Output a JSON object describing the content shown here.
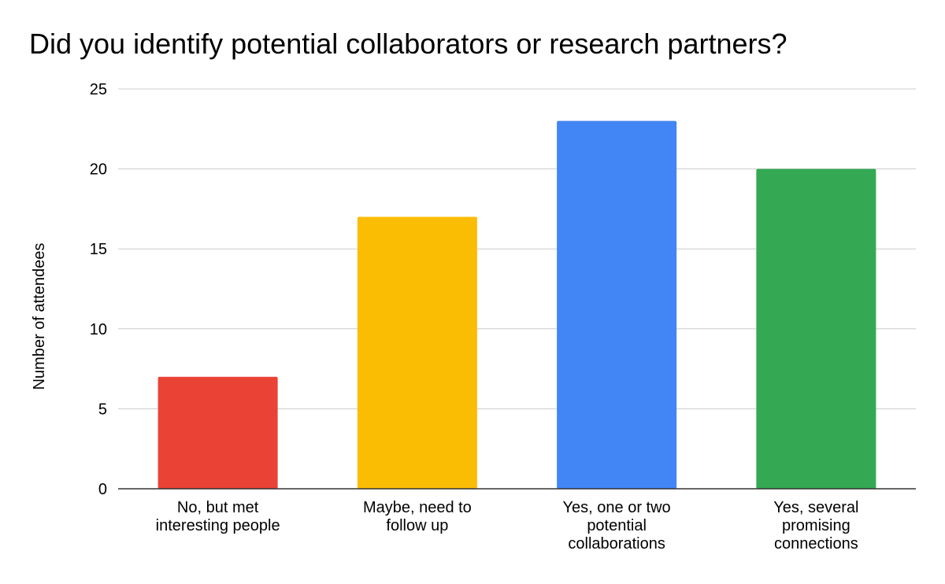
{
  "chart_data": {
    "type": "bar",
    "title": "Did you identify potential collaborators or research partners?",
    "xlabel": "",
    "ylabel": "Number of attendees",
    "ylim": [
      0,
      25
    ],
    "yticks": [
      0,
      5,
      10,
      15,
      20,
      25
    ],
    "grid": true,
    "legend": "none",
    "categories": [
      "No, but met interesting people",
      "Maybe, need to follow up",
      "Yes, one or two potential collaborations",
      "Yes, several promising connections"
    ],
    "category_label_lines": [
      [
        "No, but met",
        "interesting people"
      ],
      [
        "Maybe, need to",
        "follow up"
      ],
      [
        "Yes, one or two",
        "potential",
        "collaborations"
      ],
      [
        "Yes, several",
        "promising",
        "connections"
      ]
    ],
    "values": [
      7,
      17,
      23,
      20
    ],
    "colors": [
      "#ea4335",
      "#fbbc04",
      "#4285f4",
      "#34a853"
    ]
  }
}
